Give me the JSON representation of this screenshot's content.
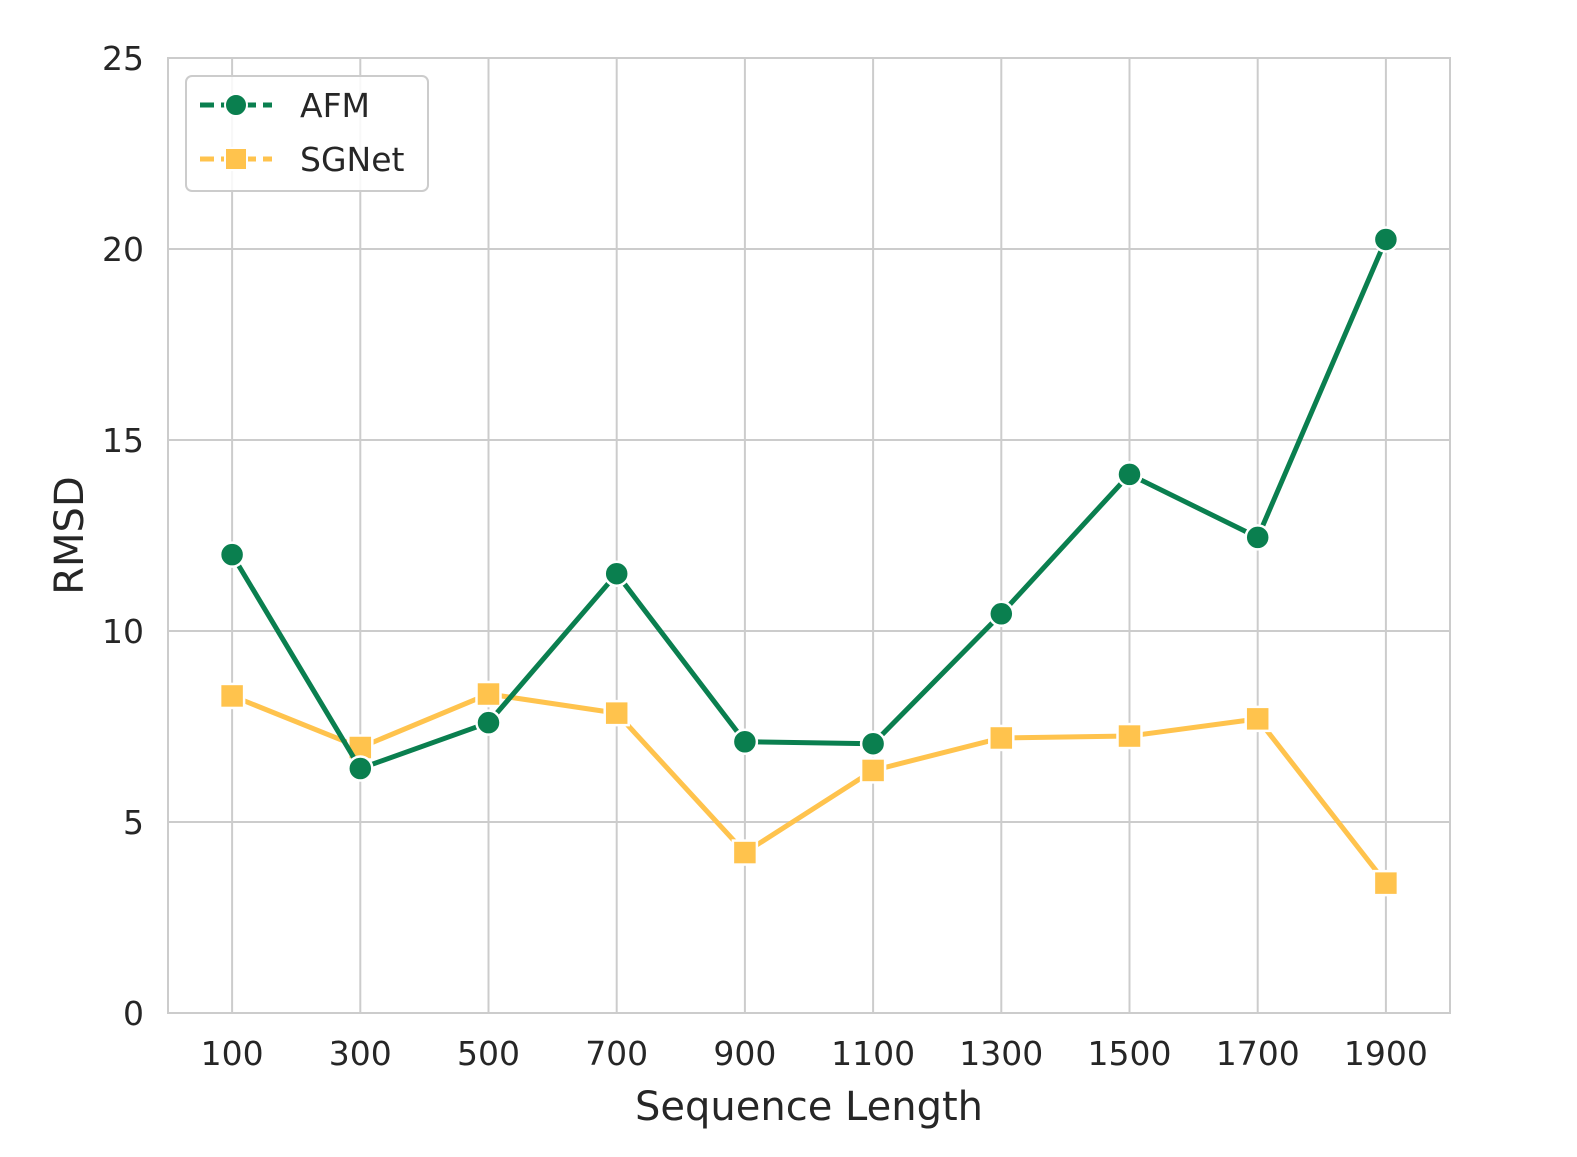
{
  "chart_data": {
    "type": "line",
    "title": "",
    "xlabel": "Sequence Length",
    "ylabel": "RMSD",
    "x": [
      100,
      300,
      500,
      700,
      900,
      1100,
      1300,
      1500,
      1700,
      1900
    ],
    "x_tick_labels": [
      "100",
      "300",
      "500",
      "700",
      "900",
      "1100",
      "1300",
      "1500",
      "1700",
      "1900"
    ],
    "xlim": [
      0,
      2000
    ],
    "ylim": [
      0,
      25
    ],
    "y_ticks": [
      0,
      5,
      10,
      15,
      20,
      25
    ],
    "y_tick_labels": [
      "0",
      "5",
      "10",
      "15",
      "20",
      "25"
    ],
    "grid": true,
    "legend_position": "top-left",
    "series": [
      {
        "name": "AFM",
        "color": "#0a7f4f",
        "marker": "circle",
        "values": [
          12.0,
          6.4,
          7.6,
          11.5,
          7.1,
          7.05,
          10.45,
          14.1,
          12.45,
          20.25
        ]
      },
      {
        "name": "SGNet",
        "color": "#ffc34d",
        "marker": "square",
        "values": [
          8.3,
          6.95,
          8.35,
          7.85,
          4.2,
          6.35,
          7.2,
          7.25,
          7.7,
          3.4
        ]
      }
    ]
  }
}
